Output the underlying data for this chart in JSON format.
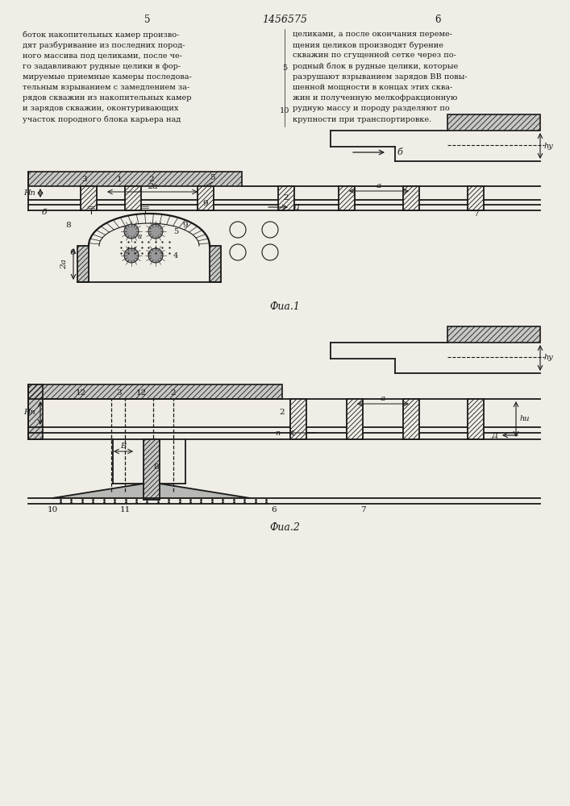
{
  "page_title": "1456575",
  "page_left": "5",
  "page_right": "6",
  "bg_color": "#f0ede6",
  "line_color": "#1a1a1a",
  "fig1_caption": "Фиа.1",
  "fig2_caption": "Фиа.2",
  "text_left_lines": [
    "боток накопительных камер произво-",
    "дят разбуривание из последних пород-",
    "ного массива под целиками, после че-",
    "го задавливают рудные целики в фор-",
    "мируемые приемные камеры последова-",
    "тельным взрыванием с замедлением за-",
    "рядов скважин из накопительных камер",
    "и зарядов скважин, оконтуривающих",
    "участок породного блока карьера над"
  ],
  "text_right_lines": [
    "целиками, а после окончания переме-",
    "щения целиков производят бурение",
    "скважин по сгущенной сетке через по-",
    "родный блок в рудные целики, которые",
    "разрушают взрыванием зарядов ВВ повы-",
    "шенной мощности в концах этих сква-",
    "жин и полученную мелкофракционную",
    "рудную массу и породу разделяют по",
    "крупности при транспортировке."
  ]
}
